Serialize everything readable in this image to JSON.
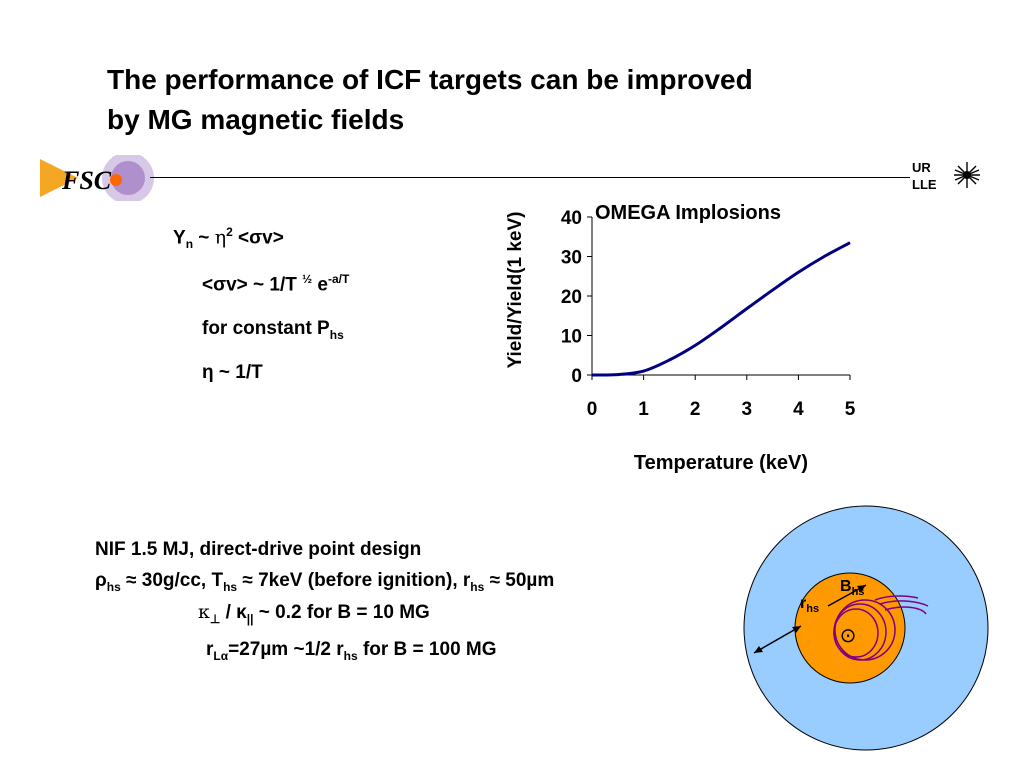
{
  "slide": {
    "title_line1": "The performance of ICF targets can be improved",
    "title_line2": "by MG magnetic fields"
  },
  "logos": {
    "left_text": "FSC",
    "right_top": "UR",
    "right_bottom": "LLE"
  },
  "equations": {
    "line1": {
      "y": "Y",
      "n": "n",
      "tilde": " ~ ",
      "eta": "η",
      "two": "2",
      "sv": " <σv>"
    },
    "line2": {
      "sv": "<σv> ~ 1/T ",
      "half": "½",
      "e": " e",
      "exp": "-a/T"
    },
    "line3": {
      "text": "for constant P",
      "sub": "hs"
    },
    "line4": {
      "text": "η ~ 1/T"
    }
  },
  "chart_data": {
    "type": "line",
    "title": "OMEGA Implosions",
    "xlabel": "Temperature (keV)",
    "ylabel": "Yield/Yield(1 keV)",
    "xlim": [
      0,
      5
    ],
    "ylim": [
      0,
      40
    ],
    "x_ticks": [
      "0",
      "1",
      "2",
      "3",
      "4",
      "5"
    ],
    "y_ticks": [
      "0",
      "10",
      "20",
      "30",
      "40"
    ],
    "grid": false,
    "line_color": "#000080",
    "x": [
      0,
      0.5,
      1.0,
      1.5,
      2.0,
      2.5,
      3.0,
      3.5,
      4.0,
      4.5,
      5.0
    ],
    "y": [
      0,
      0.1,
      1.0,
      3.8,
      7.5,
      12.0,
      16.8,
      21.5,
      26.0,
      30.0,
      33.5
    ]
  },
  "nif": {
    "line1": "NIF 1.5 MJ, direct-drive point design",
    "line2": {
      "rho": "ρ",
      "hs1": "hs",
      "a": " ≈ 30g/cc, T",
      "hs2": "hs",
      "b": " ≈ 7keV (before ignition), r",
      "hs3": "hs",
      "c": " ≈ 50µm"
    },
    "line3": {
      "k1": "κ",
      "perp": "⊥",
      "slash": " / κ",
      "par": "||",
      "rest": " ~ 0.2 for B = 10 MG"
    },
    "line4": {
      "r": "r",
      "la": "Lα",
      "a": "=27µm ~1/2 r",
      "hs": "hs",
      "b": " for B = 100 MG"
    }
  },
  "diagram": {
    "outer_color": "#99ccff",
    "inner_color": "#ff9900",
    "orbit_color": "#800080",
    "b_label": "B",
    "b_sub": "hs",
    "r_label": "r",
    "r_sub": "hs",
    "field_symbol": "⊙"
  }
}
